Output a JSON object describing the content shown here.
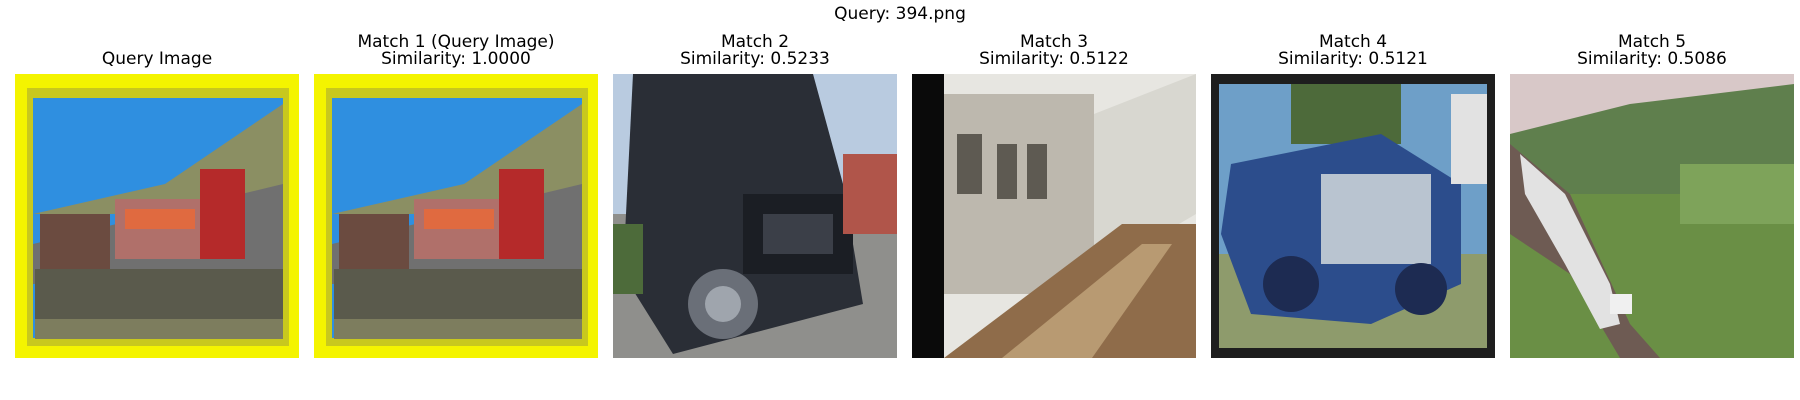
{
  "figure": {
    "title": "Query: 394.png"
  },
  "panels": [
    {
      "title": "Query Image",
      "subtitle": "",
      "image": "query-train-image"
    },
    {
      "title": "Match 1 (Query Image)",
      "subtitle": "Similarity: 1.0000",
      "image": "match-1-train-image"
    },
    {
      "title": "Match 2",
      "subtitle": "Similarity: 0.5233",
      "image": "match-2-truck-image"
    },
    {
      "title": "Match 3",
      "subtitle": "Similarity: 0.5122",
      "image": "match-3-train-image"
    },
    {
      "title": "Match 4",
      "subtitle": "Similarity: 0.5121",
      "image": "match-4-car-image"
    },
    {
      "title": "Match 5",
      "subtitle": "Similarity: 0.5086",
      "image": "match-5-train-image"
    }
  ]
}
